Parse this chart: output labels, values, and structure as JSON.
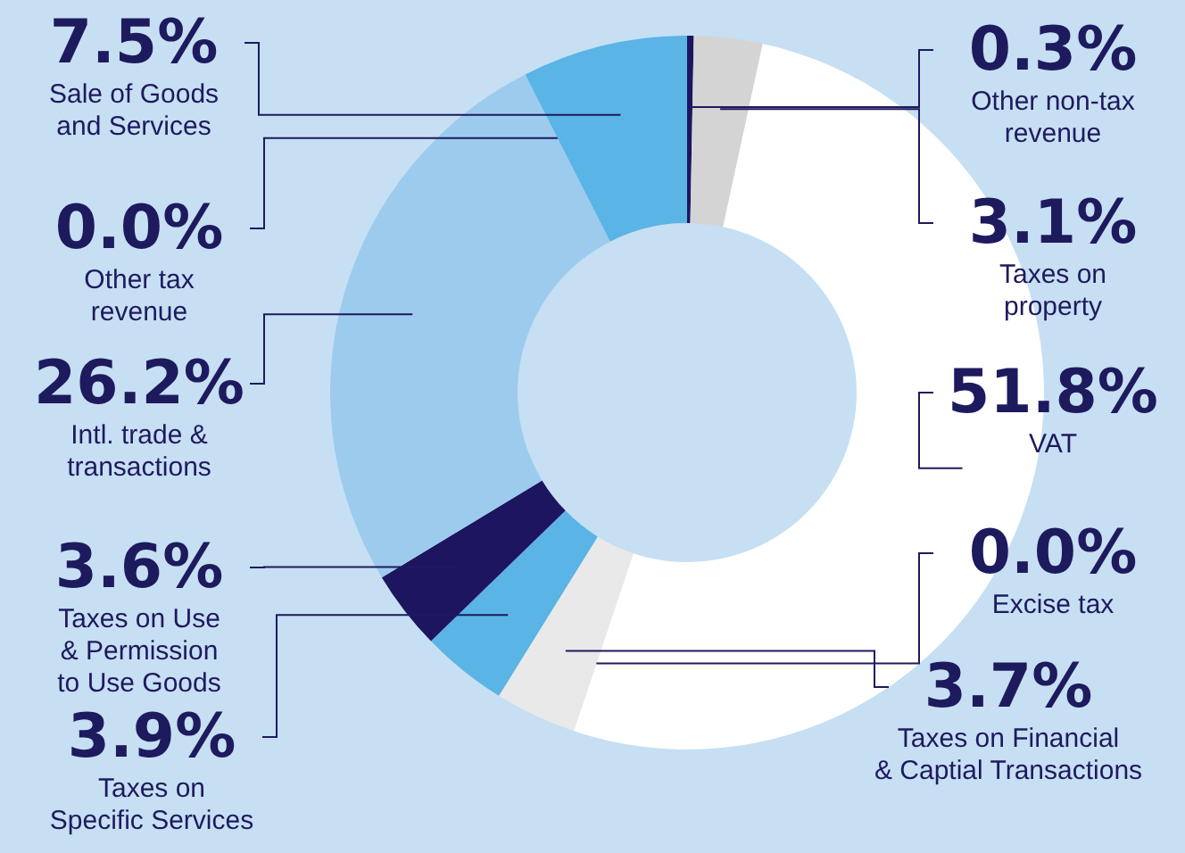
{
  "chart_data": {
    "type": "donut",
    "categories": [
      "Other non-tax\nrevenue",
      "Taxes on\nproperty",
      "VAT",
      "Excise tax",
      "Taxes on Financial\n& Captial Transactions",
      "Taxes on\nSpecific Services",
      "Taxes on Use\n& Permission\nto Use Goods",
      "Intl. trade &\ntransactions",
      "Other tax\nrevenue",
      "Sale of Goods\nand Services"
    ],
    "values": [
      0.3,
      3.1,
      51.8,
      0.0,
      3.7,
      3.9,
      3.6,
      26.2,
      0.0,
      7.5
    ],
    "value_labels": [
      "0.3%",
      "3.1%",
      "51.8%",
      "0.0%",
      "3.7%",
      "3.9%",
      "3.6%",
      "26.2%",
      "0.0%",
      "7.5%"
    ],
    "colors": [
      "#1e1560",
      "#d4d4d4",
      "#ffffff",
      "#ffffff",
      "#e9e9e9",
      "#5ab4e5",
      "#1e1560",
      "#9ccbee",
      "#9ccbee",
      "#5ab4e5"
    ],
    "legend": false
  }
}
